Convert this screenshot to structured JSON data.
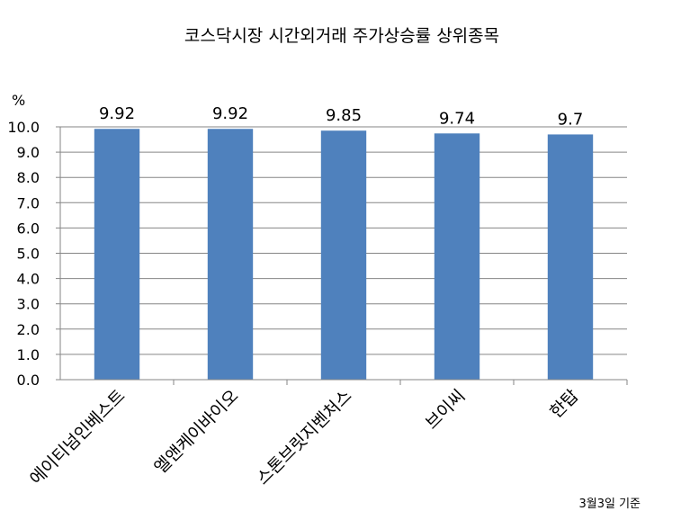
{
  "chart_data": {
    "type": "bar",
    "title": "코스닥시장 시간외거래  주가상승률 상위종목",
    "unit_label": "%",
    "categories": [
      "에이티넘인베스트",
      "엘앤케이바이오",
      "스톤브릿지벤처스",
      "브이씨",
      "한탑"
    ],
    "values": [
      9.92,
      9.92,
      9.85,
      9.74,
      9.7
    ],
    "data_labels": [
      "9.92",
      "9.92",
      "9.85",
      "9.74",
      "9.7"
    ],
    "ylim": [
      0,
      10
    ],
    "yticks": [
      "0.0",
      "1.0",
      "2.0",
      "3.0",
      "4.0",
      "5.0",
      "6.0",
      "7.0",
      "8.0",
      "9.0",
      "10.0"
    ],
    "grid": true,
    "legend": "none",
    "bar_color": "#4f81bd",
    "note": "3월3일 기준"
  }
}
